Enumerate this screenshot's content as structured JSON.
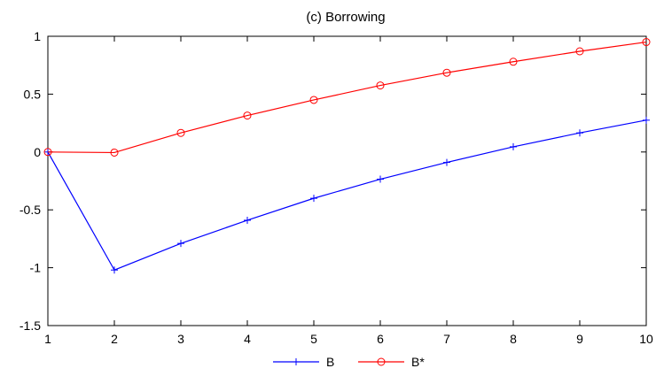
{
  "chart_data": {
    "type": "line",
    "title": "(c) Borrowing",
    "xlabel": "",
    "ylabel": "",
    "x": [
      1,
      2,
      3,
      4,
      5,
      6,
      7,
      8,
      9,
      10
    ],
    "xlim": [
      1,
      10
    ],
    "ylim": [
      -1.5,
      1
    ],
    "xticks": [
      1,
      2,
      3,
      4,
      5,
      6,
      7,
      8,
      9,
      10
    ],
    "yticks": [
      -1.5,
      -1,
      -0.5,
      0,
      0.5,
      1
    ],
    "ytick_labels": [
      "-1.5",
      "-1",
      "-0.5",
      "0",
      "0.5",
      "1"
    ],
    "grid": false,
    "legend_position": "bottom-center",
    "series": [
      {
        "name": "B",
        "color": "#0000ff",
        "marker": "plus",
        "values": [
          0,
          -1.02,
          -0.79,
          -0.59,
          -0.4,
          -0.235,
          -0.09,
          0.045,
          0.165,
          0.275
        ]
      },
      {
        "name": "B*",
        "color": "#ff0000",
        "marker": "circle",
        "values": [
          0,
          -0.005,
          0.165,
          0.315,
          0.45,
          0.575,
          0.685,
          0.78,
          0.87,
          0.95
        ]
      }
    ]
  }
}
